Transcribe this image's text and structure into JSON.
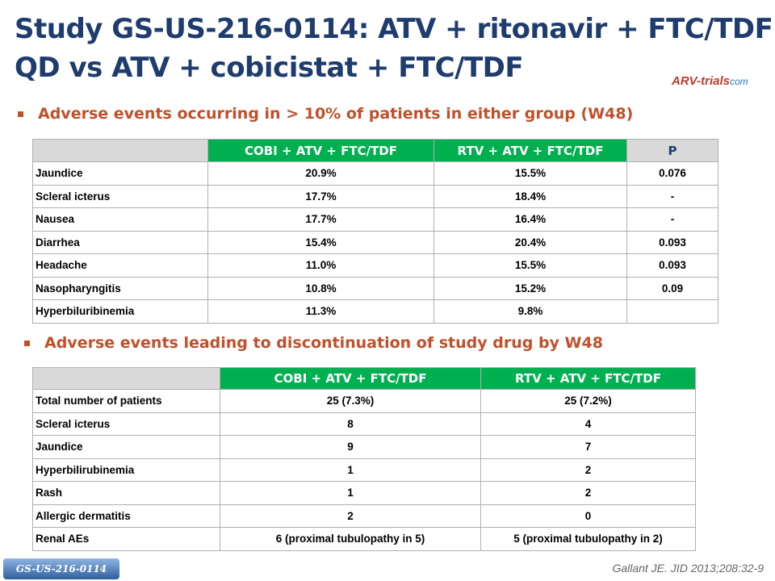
{
  "header": {
    "title": [
      "Study GS-US-216-0114: ATV + ritonavir + FTC/TDF",
      "QD vs ATV + cobicistat + FTC/TDF"
    ],
    "logo": [
      "ARV-trials",
      "com"
    ]
  },
  "sections": [
    {
      "bullet": "Adverse events occurring in > 10% of patients in either group (W48)",
      "table": {
        "columns": [
          "COBI + ATV + FTC/TDF",
          "RTV + ATV + FTC/TDF",
          "P"
        ],
        "rows": [
          [
            "Jaundice",
            "20.9%",
            "15.5%",
            "0.076"
          ],
          [
            "Scleral icterus",
            "17.7%",
            "18.4%",
            "-"
          ],
          [
            "Nausea",
            "17.7%",
            "16.4%",
            "-"
          ],
          [
            "Diarrhea",
            "15.4%",
            "20.4%",
            "0.093"
          ],
          [
            "Headache",
            "11.0%",
            "15.5%",
            "0.093"
          ],
          [
            "Nasopharyngitis",
            "10.8%",
            "15.2%",
            "0.09"
          ],
          [
            "Hyperbiluribinemia",
            "11.3%",
            "9.8%"
          ]
        ]
      }
    },
    {
      "bullet": "Adverse events leading to discontinuation of study drug by W48",
      "table": {
        "columns": [
          "COBI + ATV + FTC/TDF",
          "RTV + ATV + FTC/TDF"
        ],
        "rows": [
          [
            "Total number of patients",
            "25 (7.3%)",
            "25 (7.2%)"
          ],
          [
            "Scleral icterus",
            "8",
            "4"
          ],
          [
            "Jaundice",
            "9",
            "7"
          ],
          [
            "Hyperbilirubinemia",
            "1",
            "2"
          ],
          [
            "Rash",
            "1",
            "2"
          ],
          [
            "Allergic dermatitis",
            "2",
            "0"
          ],
          [
            "Renal AEs",
            "6 (proximal tubulopathy in 5)",
            "5 (proximal tubulopathy in 2)"
          ]
        ]
      }
    }
  ],
  "footer": {
    "tag": "GS-US-216-0114",
    "citation": "Gallant JE. JID 2013;208:32-9"
  }
}
